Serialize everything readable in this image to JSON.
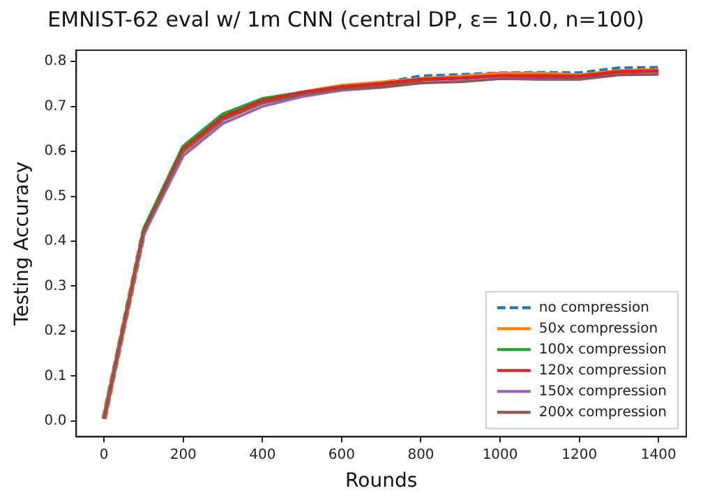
{
  "chart_data": {
    "type": "line",
    "title": "EMNIST-62 eval w/ 1m CNN (central DP, ε= 10.0, n=100)",
    "xlabel": "Rounds",
    "ylabel": "Testing Accuracy",
    "x": [
      0,
      100,
      200,
      300,
      400,
      500,
      600,
      700,
      800,
      900,
      1000,
      1100,
      1200,
      1300,
      1400
    ],
    "xlim": [
      -70,
      1470
    ],
    "xticks": [
      0,
      200,
      400,
      600,
      800,
      1000,
      1200,
      1400
    ],
    "ylim": [
      -0.035,
      0.825
    ],
    "yticks": [
      {
        "value": 0,
        "label": "0.0"
      },
      {
        "value": 0.1,
        "label": "0.1"
      },
      {
        "value": 0.2,
        "label": "0.2"
      },
      {
        "value": 0.3,
        "label": "0.3"
      },
      {
        "value": 0.4,
        "label": "0.4"
      },
      {
        "value": 0.5,
        "label": "0.5"
      },
      {
        "value": 0.6,
        "label": "0.6"
      },
      {
        "value": 0.7,
        "label": "0.7"
      },
      {
        "value": 0.8,
        "label": "0.8"
      }
    ],
    "grid": false,
    "legend": "bottom right",
    "marker": "none",
    "series": [
      {
        "name": "no compression",
        "color": "#1f77b4",
        "line_style": "dashed",
        "values": [
          0.005,
          0.42,
          0.605,
          0.675,
          0.712,
          0.728,
          0.742,
          0.75,
          0.765,
          0.768,
          0.772,
          0.773,
          0.772,
          0.783,
          0.784
        ]
      },
      {
        "name": "50x compression",
        "color": "#ff7f0e",
        "values": [
          0.005,
          0.42,
          0.6,
          0.672,
          0.71,
          0.73,
          0.745,
          0.752,
          0.76,
          0.765,
          0.772,
          0.772,
          0.768,
          0.778,
          0.78
        ]
      },
      {
        "name": "100x compression",
        "color": "#2ca02c",
        "values": [
          null,
          0.425,
          0.61,
          0.682,
          0.716,
          0.73,
          null,
          0.748,
          0.758,
          null,
          null,
          null,
          null,
          null,
          null
        ]
      },
      {
        "name": "120x compression",
        "color": "#d62728",
        "values": [
          0.005,
          0.42,
          0.605,
          0.676,
          0.713,
          0.731,
          0.743,
          0.75,
          0.76,
          0.763,
          0.768,
          0.768,
          0.767,
          0.777,
          0.779
        ]
      },
      {
        "name": "150x compression",
        "color": "#9467bd",
        "values": [
          0.005,
          0.415,
          0.59,
          0.662,
          0.7,
          0.722,
          0.736,
          0.742,
          0.752,
          0.756,
          0.762,
          0.76,
          0.76,
          0.77,
          0.772
        ]
      },
      {
        "name": "200x compression",
        "color": "#8c564b",
        "values": [
          0.005,
          0.42,
          0.6,
          0.67,
          0.707,
          0.726,
          0.738,
          0.743,
          0.752,
          0.754,
          0.761,
          0.762,
          0.762,
          0.77,
          0.771
        ]
      }
    ]
  }
}
